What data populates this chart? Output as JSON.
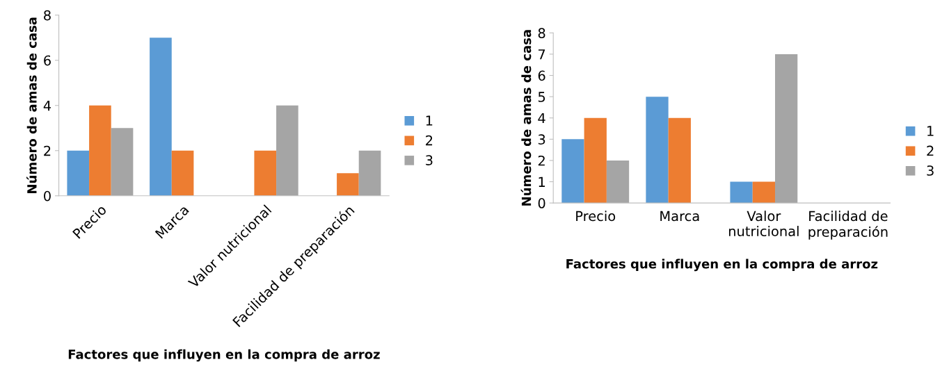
{
  "chart_data": [
    {
      "type": "bar",
      "categories": [
        "Precio",
        "Marca",
        "Valor nutricional",
        "Facilidad de preparación"
      ],
      "xlabel": "Factores que influyen en la compra de arroz",
      "ylabel": "Número de amas de casa",
      "ylim": [
        0,
        8
      ],
      "yticks": [
        0,
        2,
        4,
        6,
        8
      ],
      "grid": false,
      "legend": "right",
      "series": [
        {
          "name": "1",
          "color": "#5b9bd5",
          "values": [
            2,
            7,
            0,
            0
          ]
        },
        {
          "name": "2",
          "color": "#ed7d31",
          "values": [
            4,
            2,
            2,
            1
          ]
        },
        {
          "name": "3",
          "color": "#a5a5a5",
          "values": [
            3,
            0,
            4,
            2
          ]
        }
      ]
    },
    {
      "type": "bar",
      "categories": [
        "Precio",
        "Marca",
        "Valor nutricional",
        "Facilidad de preparación"
      ],
      "xlabel": "Factores que influyen en la compra de arroz",
      "ylabel": "Número de amas de casa",
      "ylim": [
        0,
        8
      ],
      "yticks": [
        0,
        1,
        2,
        3,
        4,
        5,
        6,
        7,
        8
      ],
      "grid": false,
      "legend": "right",
      "series": [
        {
          "name": "1",
          "color": "#5b9bd5",
          "values": [
            3,
            5,
            1,
            0
          ]
        },
        {
          "name": "2",
          "color": "#ed7d31",
          "values": [
            4,
            4,
            1,
            0
          ]
        },
        {
          "name": "3",
          "color": "#a5a5a5",
          "values": [
            2,
            0,
            7,
            0
          ]
        }
      ]
    }
  ]
}
